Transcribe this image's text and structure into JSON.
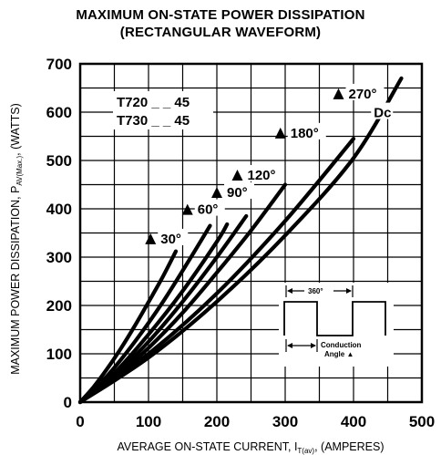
{
  "chart_data": {
    "type": "line",
    "title": "MAXIMUM ON-STATE POWER DISSIPATION",
    "subtitle": "(RECTANGULAR WAVEFORM)",
    "xlabel": {
      "main": "AVERAGE ON-STATE CURRENT, I",
      "sub": "T(av)",
      "tail": ", (AMPERES)"
    },
    "ylabel": {
      "main": "MAXIMUM POWER DISSIPATION, P",
      "sub": "AV(Max.)",
      "tail": ", (WATTS)"
    },
    "xlim": [
      0,
      500
    ],
    "ylim": [
      0,
      700
    ],
    "x_ticks": [
      "0",
      "100",
      "200",
      "300",
      "400",
      "500"
    ],
    "y_ticks": [
      "0",
      "100",
      "200",
      "300",
      "400",
      "500",
      "600",
      "700"
    ],
    "grid": true,
    "legend": [
      "T720 _ _ 45",
      "T730 _ _ 45"
    ],
    "series": [
      {
        "name": "30°",
        "x": [
          0,
          20,
          40,
          60,
          80,
          100,
          120,
          140
        ],
        "y": [
          0,
          32,
          70,
          112,
          158,
          207,
          257,
          312
        ]
      },
      {
        "name": "60°",
        "x": [
          0,
          40,
          80,
          120,
          160,
          190
        ],
        "y": [
          0,
          55,
          125,
          205,
          295,
          365
        ]
      },
      {
        "name": "90°",
        "x": [
          0,
          50,
          100,
          150,
          200,
          215
        ],
        "y": [
          0,
          60,
          140,
          230,
          332,
          368
        ]
      },
      {
        "name": "120°",
        "x": [
          0,
          50,
          100,
          150,
          200,
          243
        ],
        "y": [
          0,
          55,
          125,
          208,
          300,
          385
        ]
      },
      {
        "name": "180°",
        "x": [
          0,
          50,
          100,
          150,
          200,
          250,
          300
        ],
        "y": [
          0,
          50,
          112,
          185,
          268,
          355,
          450
        ]
      },
      {
        "name": "270°",
        "x": [
          0,
          100,
          200,
          300,
          400
        ],
        "y": [
          0,
          100,
          225,
          375,
          545
        ]
      },
      {
        "name": "Dc",
        "x": [
          0,
          100,
          200,
          300,
          400,
          470
        ],
        "y": [
          0,
          92,
          208,
          345,
          505,
          670
        ]
      }
    ],
    "annotations": [
      {
        "label": "30°",
        "x": 103,
        "y": 336
      },
      {
        "label": "60°",
        "x": 157,
        "y": 397
      },
      {
        "label": "90°",
        "x": 200,
        "y": 432
      },
      {
        "label": "120°",
        "x": 230,
        "y": 468
      },
      {
        "label": "180°",
        "x": 293,
        "y": 555
      },
      {
        "label": "270°",
        "x": 378,
        "y": 636
      },
      {
        "label": "Dc",
        "x": 415,
        "y": 597
      }
    ],
    "inset": {
      "top_label": "360°",
      "bottom_label_line1": "Conduction",
      "bottom_label_line2": "Angle ▲"
    }
  }
}
